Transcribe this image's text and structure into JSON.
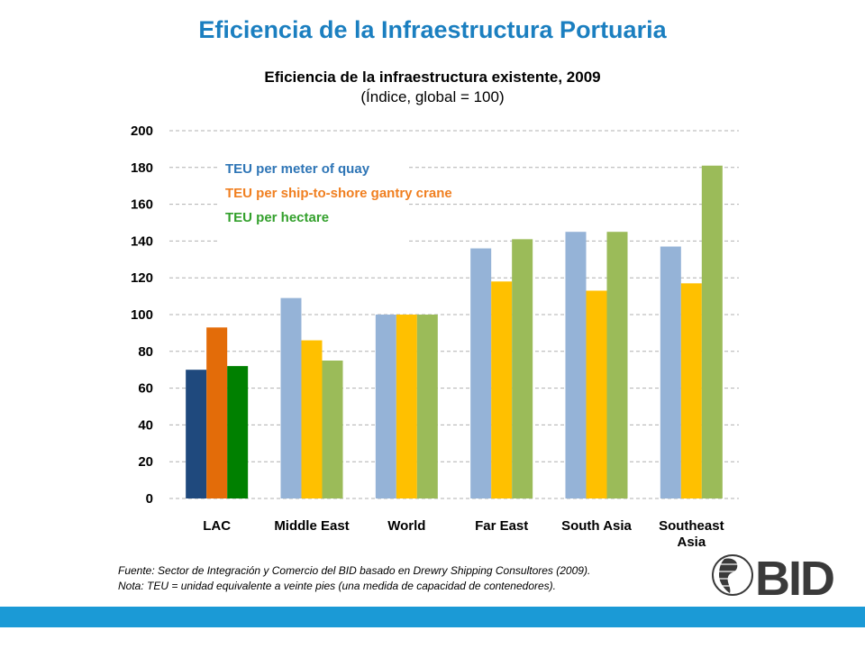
{
  "slide": {
    "title": "Eficiencia de la Infraestructura Portuaria",
    "footer_bar_color": "#1b9ad6"
  },
  "notes": {
    "source": "Fuente: Sector de Integración y Comercio del BID basado en Drewry Shipping Consultores (2009).",
    "nota": "Nota: TEU = unidad equivalente a veinte pies (una medida de capacidad de contenedores)."
  },
  "logo": {
    "text": "BID",
    "color": "#3a3a3a"
  },
  "chart_data": {
    "type": "bar",
    "title": "Eficiencia de la infraestructura existente, 2009",
    "subtitle": "(Índice, global = 100)",
    "xlabel": "",
    "ylabel": "",
    "ylim": [
      0,
      200
    ],
    "yticks": [
      "0",
      "20",
      "40",
      "60",
      "80",
      "100",
      "120",
      "140",
      "160",
      "180",
      "200"
    ],
    "grid": true,
    "legend_position": "top-left",
    "categories": [
      "LAC",
      "Middle East",
      "World",
      "Far East",
      "South Asia",
      "Southeast Asia"
    ],
    "series": [
      {
        "name": "TEU per meter of quay",
        "color": "#95b3d7",
        "highlight_color": "#1f497d",
        "legend_color": "#2e75b6",
        "values": [
          70,
          109,
          100,
          136,
          145,
          137
        ]
      },
      {
        "name": "TEU per ship-to-shore gantry crane",
        "color": "#ffc000",
        "highlight_color": "#e36c09",
        "legend_color": "#f07f20",
        "values": [
          93,
          86,
          100,
          118,
          113,
          117
        ]
      },
      {
        "name": "TEU per hectare",
        "color": "#9bbb59",
        "highlight_color": "#008000",
        "legend_color": "#33a02c",
        "values": [
          72,
          75,
          100,
          141,
          145,
          181
        ]
      }
    ],
    "highlight_category": "LAC"
  }
}
